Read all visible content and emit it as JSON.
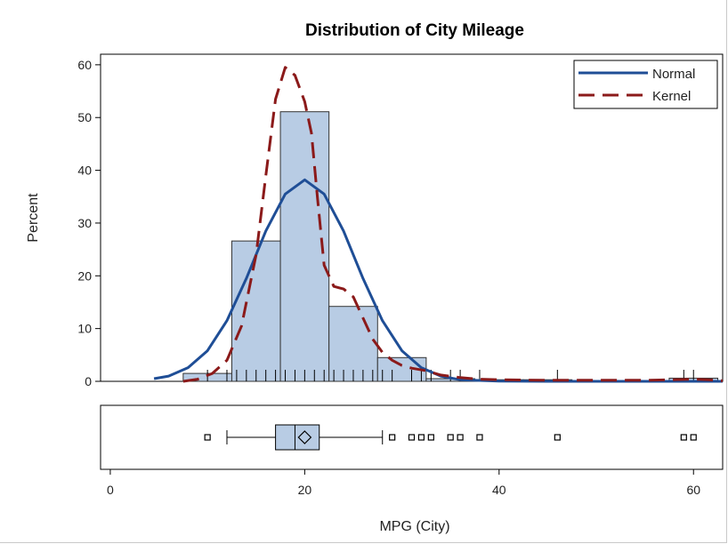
{
  "chart_data": {
    "type": "histogram",
    "title": "Distribution of City Mileage",
    "xlabel": "MPG (City)",
    "ylabel": "Percent",
    "xlim": [
      -1,
      63
    ],
    "ylim": [
      0,
      62
    ],
    "x_ticks": [
      0,
      20,
      40,
      60
    ],
    "y_ticks": [
      0,
      10,
      20,
      30,
      40,
      50,
      60
    ],
    "legend_position": "top-right",
    "colors": {
      "bar_fill": "#b8cce4",
      "bar_stroke": "#333333",
      "normal": "#1f4e96",
      "kernel": "#8b1a1a"
    },
    "histogram": {
      "bin_width": 5,
      "bins": [
        {
          "start": 7.5,
          "end": 12.5,
          "percent": 1.5
        },
        {
          "start": 12.5,
          "end": 17.5,
          "percent": 26.6
        },
        {
          "start": 17.5,
          "end": 22.5,
          "percent": 51.1
        },
        {
          "start": 22.5,
          "end": 27.5,
          "percent": 14.2
        },
        {
          "start": 27.5,
          "end": 32.5,
          "percent": 4.5
        },
        {
          "start": 32.5,
          "end": 37.5,
          "percent": 0.5
        },
        {
          "start": 37.5,
          "end": 42.5,
          "percent": 0.3
        },
        {
          "start": 42.5,
          "end": 47.5,
          "percent": 0.3
        },
        {
          "start": 47.5,
          "end": 52.5,
          "percent": 0.0
        },
        {
          "start": 52.5,
          "end": 57.5,
          "percent": 0.0
        },
        {
          "start": 57.5,
          "end": 62.5,
          "percent": 0.6
        }
      ]
    },
    "series": [
      {
        "name": "Normal",
        "x": [
          4.5,
          6,
          8,
          10,
          12,
          14,
          16,
          18,
          20,
          22,
          24,
          26,
          28,
          30,
          32,
          34,
          36,
          40,
          45,
          50,
          55,
          60,
          63
        ],
        "y": [
          0.5,
          1.0,
          2.6,
          5.8,
          11.5,
          19.5,
          28.5,
          35.5,
          38.2,
          35.5,
          28.5,
          19.5,
          11.5,
          5.8,
          2.6,
          1.0,
          0.3,
          0.05,
          0.0,
          0.0,
          0.0,
          0.0,
          0.0
        ]
      },
      {
        "name": "Kernel",
        "x": [
          7.5,
          9,
          10.5,
          12,
          13.5,
          15,
          16,
          17,
          18,
          19,
          20,
          20.7,
          21.3,
          22,
          23,
          24,
          25,
          26,
          27,
          28,
          29,
          30,
          31,
          32.5,
          34,
          36,
          38,
          40,
          45,
          50,
          55,
          58,
          60,
          61.5,
          63
        ],
        "y": [
          0.0,
          0.4,
          1.5,
          4.0,
          10.5,
          24.0,
          39.0,
          53.5,
          59.5,
          58.0,
          53.0,
          47.0,
          35.0,
          22.0,
          18.0,
          17.5,
          16.0,
          12.0,
          8.0,
          5.5,
          4.0,
          3.0,
          2.5,
          2.0,
          1.2,
          0.7,
          0.4,
          0.3,
          0.2,
          0.2,
          0.2,
          0.3,
          0.4,
          0.3,
          0.1
        ]
      }
    ],
    "rug": [
      10,
      12,
      13,
      14,
      15,
      16,
      17,
      18,
      19,
      20,
      21,
      22,
      23,
      24,
      25,
      26,
      27,
      28,
      29,
      31,
      32,
      33,
      35,
      36,
      38,
      46,
      59,
      60
    ],
    "boxplot": {
      "whisker_low": 12,
      "q1": 17,
      "median": 19,
      "q3": 21.5,
      "whisker_high": 28,
      "mean": 20,
      "outliers": [
        10,
        29,
        31,
        32,
        33,
        35,
        36,
        38,
        46,
        59,
        60
      ]
    }
  }
}
